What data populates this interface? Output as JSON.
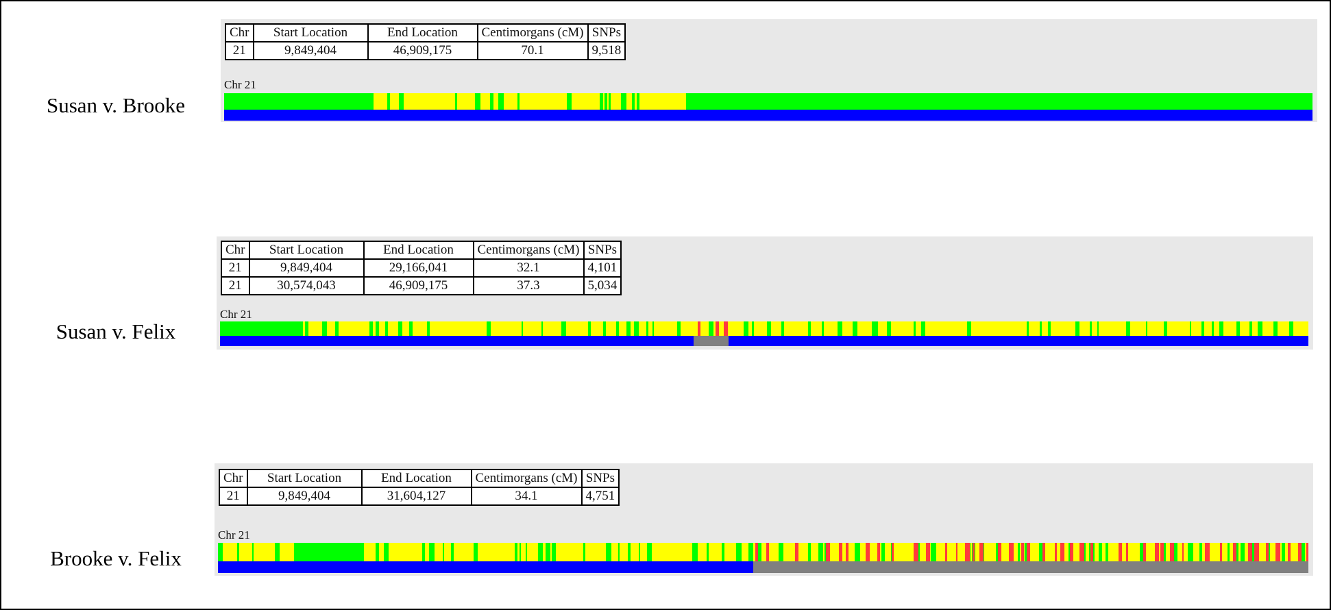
{
  "colors": {
    "panel": "#e8e8e8",
    "mismatch": "#ff3b3b",
    "half_match": "#ffff00",
    "full_match": "#00ff00",
    "matched_segment": "#0000ff",
    "no_match": "#808080"
  },
  "table_headers": [
    "Chr",
    "Start Location",
    "End Location",
    "Centimorgans (cM)",
    "SNPs"
  ],
  "comparisons": [
    {
      "label": "Susan v. Brooke",
      "chr_label": "Chr 21",
      "rows": [
        [
          "21",
          "9,849,404",
          "46,909,175",
          "70.1",
          "9,518"
        ]
      ],
      "full_blocks": [
        [
          0.0,
          0.1374
        ],
        [
          0.4254,
          1.0
        ]
      ],
      "segments_matched": [
        [
          0.0,
          1.0
        ]
      ]
    },
    {
      "label": "Susan v. Felix",
      "chr_label": "Chr 21",
      "rows": [
        [
          "21",
          "9,849,404",
          "29,166,041",
          "32.1",
          "4,101"
        ],
        [
          "21",
          "30,574,043",
          "46,909,175",
          "37.3",
          "5,034"
        ]
      ],
      "full_blocks": [
        [
          0.0,
          0.0765
        ]
      ],
      "segments_matched": [
        [
          0.0,
          0.435
        ],
        [
          0.4674,
          1.0
        ]
      ]
    },
    {
      "label": "Brooke v. Felix",
      "chr_label": "Chr 21",
      "rows": [
        [
          "21",
          "9,849,404",
          "31,604,127",
          "34.1",
          "4,751"
        ]
      ],
      "full_blocks": [
        [
          0.0718,
          0.1342
        ]
      ],
      "segments_matched": [
        [
          0.0,
          0.4911
        ]
      ]
    }
  ]
}
